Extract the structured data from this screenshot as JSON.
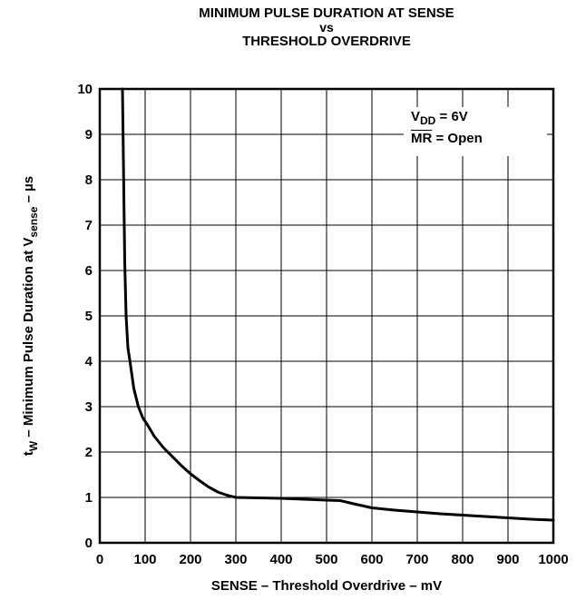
{
  "chart_data": {
    "type": "line",
    "title": "MINIMUM PULSE DURATION AT SENSE",
    "title_vs": "vs",
    "subtitle": "THRESHOLD OVERDRIVE",
    "xlabel": "SENSE – Threshold Overdrive – mV",
    "ylabel_parts": {
      "t": "t",
      "t_sub": "W",
      "text": " – Minimum Pulse Duration at  V",
      "v_sub": "sense",
      "unit": " – µs"
    },
    "xlim": [
      0,
      1000
    ],
    "ylim": [
      0,
      10
    ],
    "xticks": [
      "0",
      "100",
      "200",
      "300",
      "400",
      "500",
      "600",
      "700",
      "800",
      "900",
      "1000"
    ],
    "yticks": [
      "0",
      "1",
      "2",
      "3",
      "4",
      "5",
      "6",
      "7",
      "8",
      "9",
      "10"
    ],
    "grid": true,
    "annotation": {
      "line1_prefix": "V",
      "line1_sub": "DD",
      "line1_suffix": " = 6V",
      "line2_over": "MR",
      "line2_suffix": " = Open"
    },
    "series": [
      {
        "x": [
          50,
          52,
          55,
          58,
          62,
          68,
          75,
          85,
          95,
          105,
          120,
          140,
          160,
          180,
          200,
          220,
          240,
          260,
          280,
          300,
          350,
          400,
          450,
          500,
          530,
          560,
          600,
          650,
          700,
          750,
          800,
          850,
          900,
          950,
          1000
        ],
        "y": [
          10,
          8.5,
          6.2,
          5.0,
          4.3,
          3.9,
          3.4,
          3.0,
          2.75,
          2.6,
          2.35,
          2.1,
          1.9,
          1.7,
          1.52,
          1.37,
          1.23,
          1.12,
          1.05,
          1.0,
          0.99,
          0.98,
          0.96,
          0.94,
          0.93,
          0.86,
          0.77,
          0.72,
          0.68,
          0.64,
          0.61,
          0.58,
          0.55,
          0.52,
          0.5
        ]
      }
    ]
  }
}
